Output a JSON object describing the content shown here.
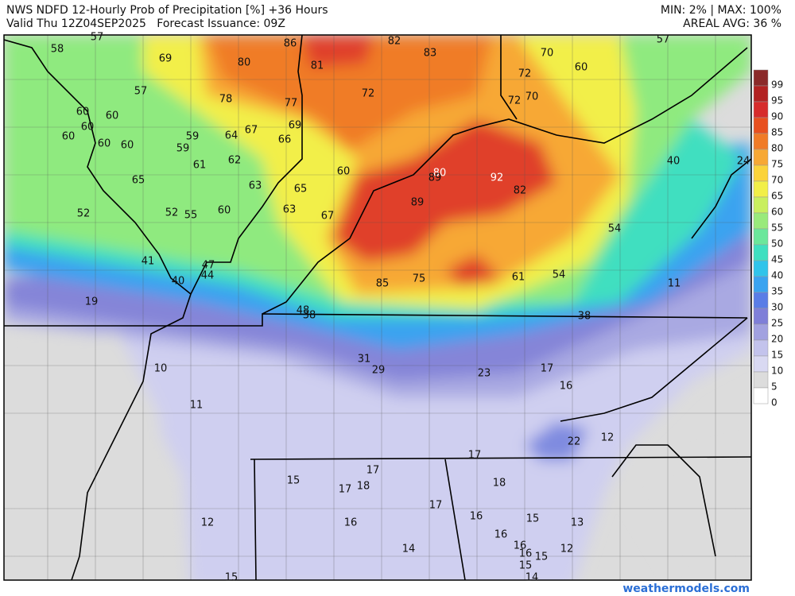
{
  "header": {
    "title": "NWS NDFD 12-Hourly Prob of Precipitation [%] +36 Hours",
    "valid": "Valid Thu 12Z04SEP2025   Forecast Issuance: 09Z",
    "minmax": "MIN: 2% | MAX: 100%",
    "areal": "AREAL AVG: 36 %"
  },
  "legend": {
    "levels": [
      99,
      95,
      90,
      85,
      80,
      75,
      70,
      65,
      60,
      55,
      50,
      45,
      40,
      35,
      30,
      25,
      20,
      15,
      10,
      5,
      0
    ],
    "colors": [
      "#8b2a2a",
      "#b22222",
      "#d62c2c",
      "#e8501f",
      "#f07b27",
      "#f7a835",
      "#fbd33a",
      "#f2ef48",
      "#c9ef5f",
      "#99ea7b",
      "#6be79b",
      "#3fdfc0",
      "#30c4ea",
      "#3aa3f0",
      "#5a7de6",
      "#7f7fd8",
      "#a1a1e0",
      "#c3c3ec",
      "#d9d9f2",
      "#dcdcdc",
      "#ffffff"
    ]
  },
  "labels": [
    57,
    58,
    69,
    80,
    86,
    82,
    83,
    81,
    70,
    57,
    60,
    72,
    57,
    78,
    77,
    72,
    72,
    70,
    60,
    60,
    60,
    60,
    60,
    60,
    59,
    64,
    67,
    69,
    66,
    59,
    61,
    62,
    60,
    80,
    89,
    92,
    82,
    40,
    24,
    65,
    63,
    65,
    63,
    52,
    52,
    55,
    60,
    67,
    89,
    54,
    41,
    47,
    44,
    40,
    85,
    75,
    61,
    54,
    11,
    19,
    48,
    38,
    38,
    31,
    29,
    23,
    17,
    10,
    16,
    11,
    22,
    12,
    17,
    17,
    15,
    17,
    18,
    18,
    17,
    16,
    15,
    13,
    12,
    16,
    16,
    16,
    14,
    12,
    16,
    15,
    15,
    14,
    15
  ],
  "credit": "weathermodels.com"
}
